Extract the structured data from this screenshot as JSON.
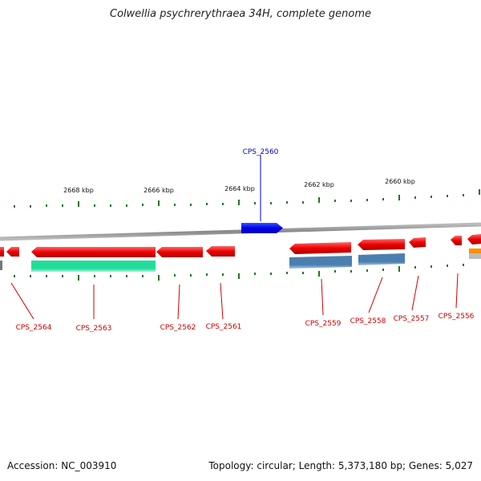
{
  "map": {
    "title": "Colwellia psychrerythraea 34H, complete genome",
    "kbp_labels": [
      "2668 kbp",
      "2666 kbp",
      "2664 kbp",
      "2662 kbp",
      "2660 kbp"
    ],
    "genes_forward": [
      "CPS_2560"
    ],
    "genes_reverse": [
      "CPS_2564",
      "CPS_2563",
      "CPS_2562",
      "CPS_2561",
      "CPS_2559",
      "CPS_2558",
      "CPS_2557",
      "CPS_2556"
    ],
    "colors": {
      "forward": "#0000ee",
      "reverse": "#ee0000",
      "green_feature": "#22dd99",
      "blue_feature": "#4a7fb0",
      "orange_feature": "#ff8c00",
      "backbone": "#888888",
      "ticks": "#006600"
    }
  },
  "footer": {
    "accession": "Accession: NC_003910",
    "stats": "Topology: circular; Length: 5,373,180 bp; Genes: 5,027"
  }
}
